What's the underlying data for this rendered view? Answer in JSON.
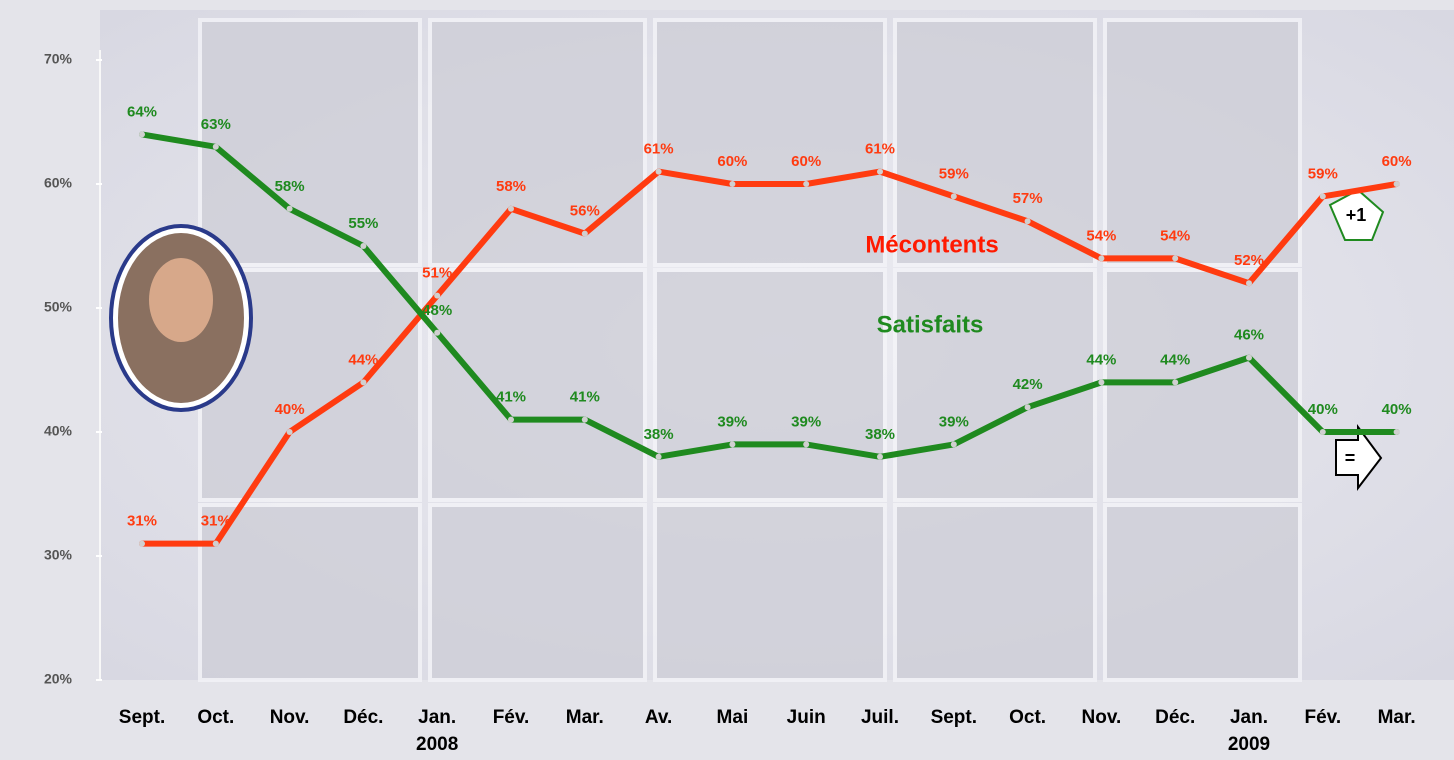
{
  "chart_data": {
    "type": "line",
    "categories": [
      "Sept.",
      "Oct.",
      "Nov.",
      "Déc.",
      "Jan.\n2008",
      "Fév.",
      "Mar.",
      "Av.",
      "Mai",
      "Juin",
      "Juil.",
      "Sept.",
      "Oct.",
      "Nov.",
      "Déc.",
      "Jan.\n2009",
      "Fév.",
      "Mar."
    ],
    "series": [
      {
        "name": "Mécontents",
        "color": "#ff3b10",
        "values": [
          31,
          31,
          40,
          44,
          51,
          58,
          56,
          61,
          60,
          60,
          61,
          59,
          57,
          54,
          54,
          52,
          59,
          60
        ],
        "value_labels": [
          "31%",
          "31%",
          "40%",
          "44%",
          "51%",
          "58%",
          "56%",
          "61%",
          "60%",
          "60%",
          "61%",
          "59%",
          "57%",
          "54%",
          "54%",
          "52%",
          "59%",
          "60%"
        ]
      },
      {
        "name": "Satisfaits",
        "color": "#1f8a1f",
        "values": [
          64,
          63,
          58,
          55,
          48,
          41,
          41,
          38,
          39,
          39,
          38,
          39,
          42,
          44,
          44,
          46,
          40,
          40
        ],
        "value_labels": [
          "64%",
          "63%",
          "58%",
          "55%",
          "48%",
          "41%",
          "41%",
          "38%",
          "39%",
          "39%",
          "38%",
          "39%",
          "42%",
          "44%",
          "44%",
          "46%",
          "40%",
          "40%"
        ]
      }
    ],
    "ylim": [
      20,
      70
    ],
    "yticks": [
      {
        "value": 20,
        "label": "20%"
      },
      {
        "value": 30,
        "label": "30%"
      },
      {
        "value": 40,
        "label": "40%"
      },
      {
        "value": 50,
        "label": "50%"
      },
      {
        "value": 60,
        "label": "60%"
      },
      {
        "value": 70,
        "label": "70%"
      }
    ],
    "annotations": [
      "+1",
      "="
    ]
  }
}
